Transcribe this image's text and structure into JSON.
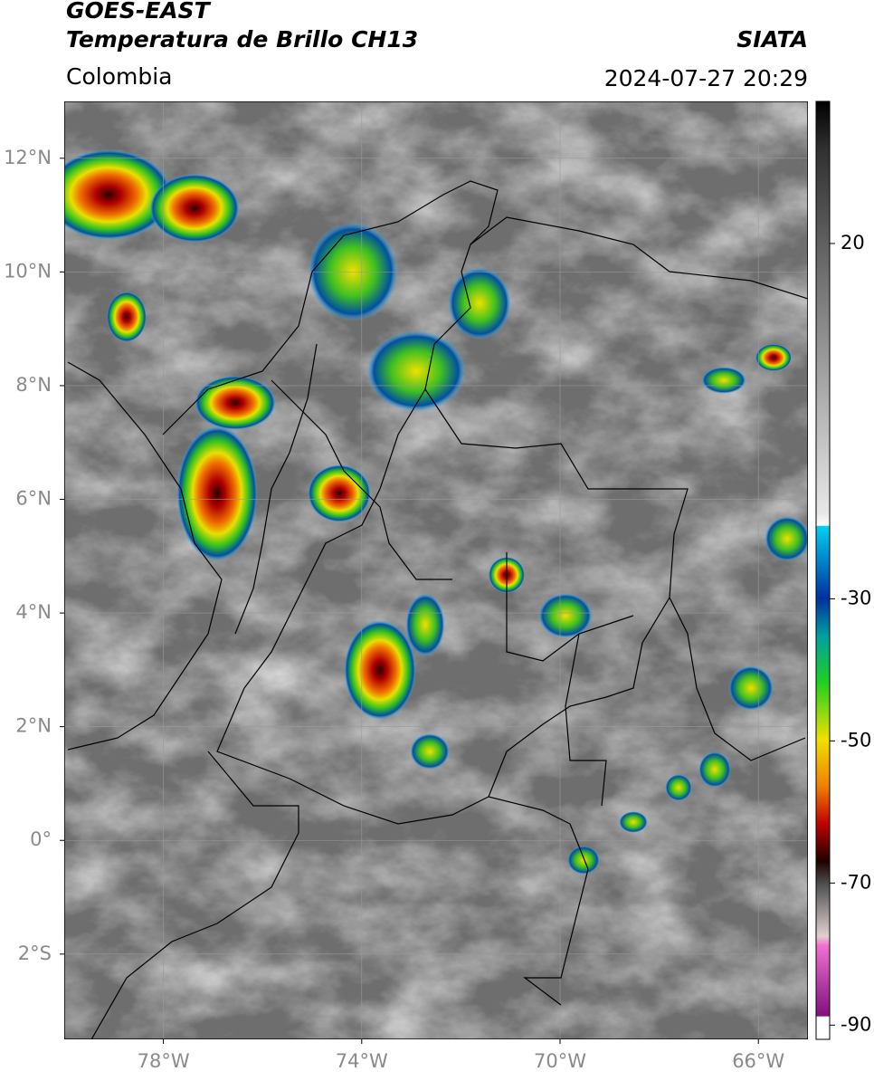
{
  "header": {
    "title": "GOES-EAST",
    "subtitle": "Temperatura de Brillo CH13",
    "region": "Colombia",
    "source": "SIATA",
    "datetime": "2024-07-27 20:29"
  },
  "map": {
    "xlim": [
      -80,
      -65
    ],
    "ylim": [
      -3.5,
      13
    ],
    "xticks": [
      {
        "value": -78,
        "label": "78°W"
      },
      {
        "value": -74,
        "label": "74°W"
      },
      {
        "value": -70,
        "label": "70°W"
      },
      {
        "value": -66,
        "label": "66°W"
      }
    ],
    "yticks": [
      {
        "value": 12,
        "label": "12°N"
      },
      {
        "value": 10,
        "label": "10°N"
      },
      {
        "value": 8,
        "label": "8°N"
      },
      {
        "value": 6,
        "label": "6°N"
      },
      {
        "value": 4,
        "label": "4°N"
      },
      {
        "value": 2,
        "label": "2°N"
      },
      {
        "value": 0,
        "label": "0°"
      },
      {
        "value": -2,
        "label": "2°S"
      }
    ],
    "grid": true,
    "colorbar": {
      "lim": [
        40,
        -92
      ],
      "ticks": [
        20,
        -30,
        -50,
        -70,
        -90
      ]
    }
  }
}
